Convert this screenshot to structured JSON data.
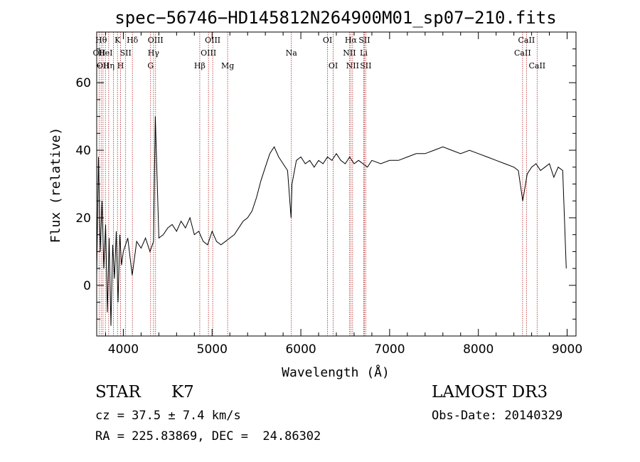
{
  "chart_data": {
    "type": "line",
    "title": "spec−56746−HD145812N264900M01_sp07−210.fits",
    "xlabel": "Wavelength (Å)",
    "ylabel": "Flux (relative)",
    "xlim": [
      3700,
      9100
    ],
    "ylim": [
      -15,
      75
    ],
    "xticks": [
      4000,
      5000,
      6000,
      7000,
      8000,
      9000
    ],
    "xtick_labels": [
      "4000",
      "5000",
      "6000",
      "7000",
      "8000",
      "9000"
    ],
    "yticks": [
      0,
      20,
      40,
      60
    ],
    "ytick_labels": [
      "0",
      "20",
      "40",
      "60"
    ],
    "grid": false,
    "line_color": "#000000",
    "marker_color": "#b22222",
    "series": [
      {
        "x": [
          3700,
          3720,
          3740,
          3760,
          3780,
          3800,
          3820,
          3840,
          3860,
          3880,
          3900,
          3920,
          3940,
          3960,
          3980,
          4000,
          4050,
          4100,
          4150,
          4200,
          4250,
          4300,
          4340,
          4360,
          4400,
          4450,
          4500,
          4550,
          4600,
          4650,
          4700,
          4750,
          4800,
          4850,
          4900,
          4950,
          5000,
          5050,
          5100,
          5150,
          5200,
          5250,
          5300,
          5350,
          5400,
          5450,
          5500,
          5550,
          5600,
          5650,
          5700,
          5750,
          5800,
          5850,
          5890,
          5900,
          5950,
          6000,
          6050,
          6100,
          6150,
          6200,
          6250,
          6300,
          6350,
          6400,
          6450,
          6500,
          6550,
          6600,
          6650,
          6700,
          6750,
          6800,
          6900,
          7000,
          7100,
          7200,
          7300,
          7400,
          7500,
          7600,
          7700,
          7800,
          7900,
          8000,
          8100,
          8200,
          8300,
          8400,
          8450,
          8500,
          8550,
          8600,
          8650,
          8700,
          8750,
          8800,
          8850,
          8900,
          8950,
          8990
        ],
        "y": [
          3,
          38,
          10,
          25,
          5,
          18,
          -8,
          14,
          -12,
          12,
          2,
          16,
          -5,
          15,
          6,
          10,
          14,
          3,
          13,
          11,
          14,
          10,
          13,
          50,
          14,
          15,
          17,
          18,
          16,
          19,
          17,
          20,
          15,
          16,
          13,
          12,
          16,
          13,
          12,
          13,
          14,
          15,
          17,
          19,
          20,
          22,
          26,
          31,
          35,
          39,
          41,
          38,
          36,
          34,
          20,
          30,
          37,
          38,
          36,
          37,
          35,
          37,
          36,
          38,
          37,
          39,
          37,
          36,
          38,
          36,
          37,
          36,
          35,
          37,
          36,
          37,
          37,
          38,
          39,
          39,
          40,
          41,
          40,
          39,
          40,
          39,
          38,
          37,
          36,
          35,
          34,
          25,
          33,
          35,
          36,
          34,
          35,
          36,
          32,
          35,
          34,
          5
        ]
      }
    ],
    "lines": [
      {
        "wl": 3727,
        "row": 1,
        "label": "OII"
      },
      {
        "wl": 3750,
        "row": 0,
        "label": "Hθ"
      },
      {
        "wl": 3771,
        "row": 2,
        "label": "OII"
      },
      {
        "wl": 3798,
        "row": 1,
        "label": "HeI"
      },
      {
        "wl": 3835,
        "row": 2,
        "label": "Hη"
      },
      {
        "wl": 3889,
        "row": 1,
        "label": ""
      },
      {
        "wl": 3934,
        "row": 0,
        "label": "K"
      },
      {
        "wl": 3969,
        "row": 2,
        "label": "H"
      },
      {
        "wl": 4026,
        "row": 1,
        "label": "SII"
      },
      {
        "wl": 4102,
        "row": 0,
        "label": "Hδ"
      },
      {
        "wl": 4307,
        "row": 2,
        "label": "G"
      },
      {
        "wl": 4340,
        "row": 1,
        "label": "Hγ"
      },
      {
        "wl": 4363,
        "row": 0,
        "label": "OIII"
      },
      {
        "wl": 4861,
        "row": 2,
        "label": "Hβ"
      },
      {
        "wl": 4959,
        "row": 1,
        "label": "OIII"
      },
      {
        "wl": 5007,
        "row": 0,
        "label": "OIII"
      },
      {
        "wl": 5175,
        "row": 2,
        "label": "Mg"
      },
      {
        "wl": 5893,
        "row": 1,
        "label": "Na"
      },
      {
        "wl": 6300,
        "row": 0,
        "label": "OI"
      },
      {
        "wl": 6364,
        "row": 2,
        "label": "OI"
      },
      {
        "wl": 6548,
        "row": 1,
        "label": "NII"
      },
      {
        "wl": 6563,
        "row": 0,
        "label": "Hα"
      },
      {
        "wl": 6583,
        "row": 2,
        "label": "NII"
      },
      {
        "wl": 6708,
        "row": 1,
        "label": "Li"
      },
      {
        "wl": 6716,
        "row": 0,
        "label": "SII"
      },
      {
        "wl": 6731,
        "row": 2,
        "label": "SII"
      },
      {
        "wl": 8498,
        "row": 1,
        "label": "CaII"
      },
      {
        "wl": 8542,
        "row": 0,
        "label": "CaII"
      },
      {
        "wl": 8662,
        "row": 2,
        "label": "CaII"
      }
    ]
  },
  "info": {
    "object_class": "STAR",
    "subclass": "K7",
    "survey": "LAMOST DR3",
    "redshift": "cz = 37.5 ± 7.4 km/s",
    "obs_date": "Obs-Date: 20140329",
    "coordinates": "RA = 225.83869, DEC =  24.86302"
  }
}
